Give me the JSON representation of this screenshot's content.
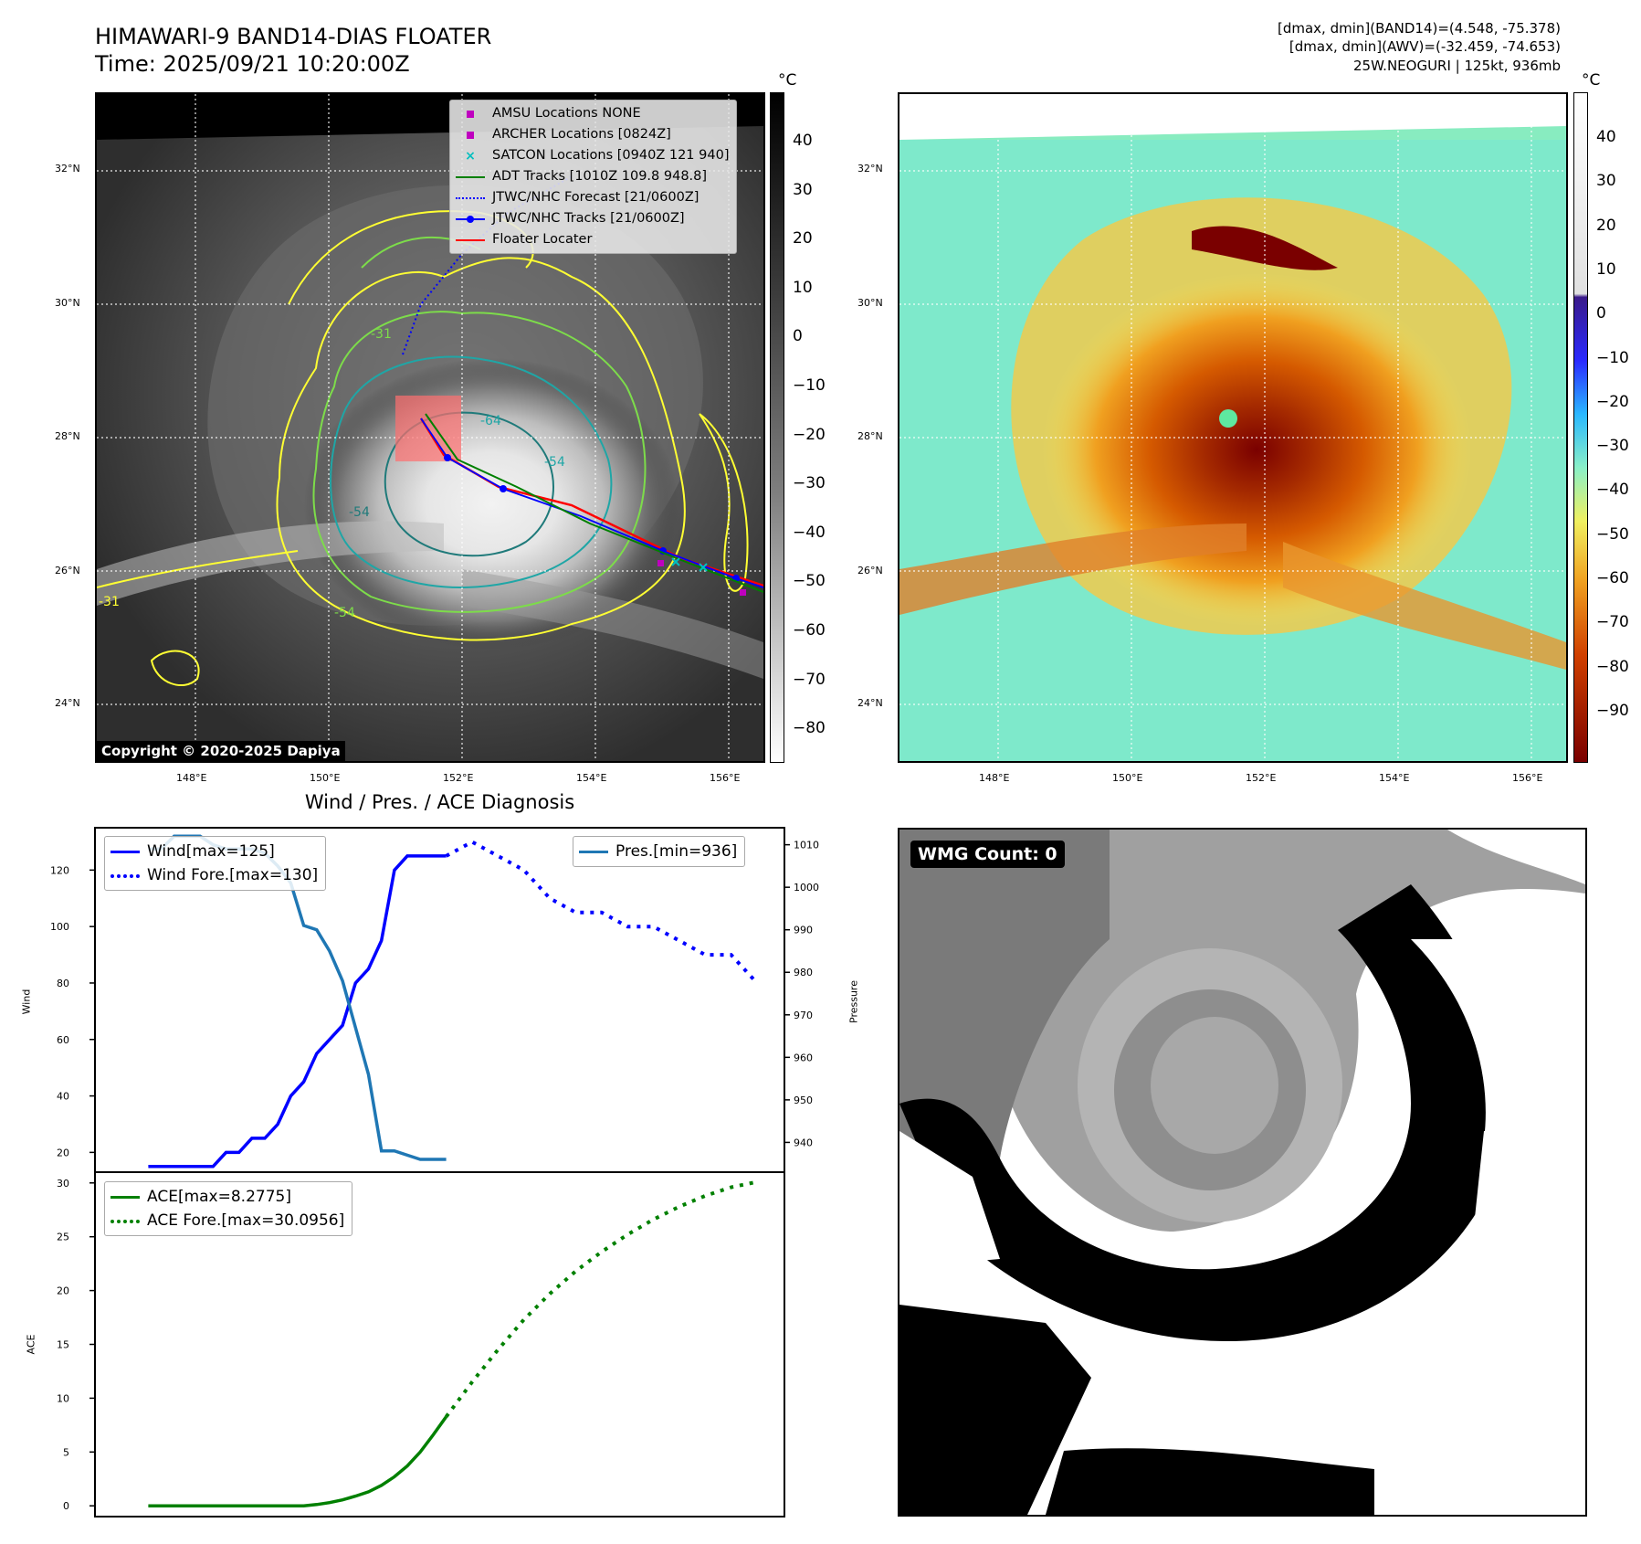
{
  "header": {
    "title_line1": "HIMAWARI-9 BAND14-DIAS FLOATER",
    "title_line2": "Time: 2025/09/21 10:20:00Z",
    "info_line1": "[dmax, dmin](BAND14)=(4.548, -75.378)",
    "info_line2": "[dmax, dmin](AWV)=(-32.459, -74.653)",
    "info_line3": "25W.NEOGURI | 125kt, 936mb"
  },
  "map_ticks": {
    "lat": [
      "32°N",
      "30°N",
      "28°N",
      "26°N",
      "24°N"
    ],
    "lon": [
      "148°E",
      "150°E",
      "152°E",
      "154°E",
      "156°E"
    ]
  },
  "ir_panel": {
    "legend": [
      {
        "label": "AMSU Locations NONE",
        "color": "#bf00bf",
        "symbol": "square"
      },
      {
        "label": "ARCHER Locations [0824Z]",
        "color": "#bf00bf",
        "symbol": "square"
      },
      {
        "label": "SATCON Locations [0940Z 121 940]",
        "color": "#00bfbf",
        "symbol": "x"
      },
      {
        "label": "ADT Tracks [1010Z 109.8 948.8]",
        "color": "#008000",
        "symbol": "line"
      },
      {
        "label": "JTWC/NHC Forecast [21/0600Z]",
        "color": "#0000ff",
        "symbol": "dotted"
      },
      {
        "label": "JTWC/NHC Tracks [21/0600Z]",
        "color": "#0000ff",
        "symbol": "line-dot"
      },
      {
        "label": "Floater Locater",
        "color": "#ff0000",
        "symbol": "line"
      }
    ],
    "copyright": "Copyright © 2020-2025 Dapiya",
    "colorbar_unit": "°C",
    "colorbar_ticks": [
      "40",
      "30",
      "20",
      "10",
      "0",
      "−10",
      "−20",
      "−30",
      "−40",
      "−50",
      "−60",
      "−70",
      "−80"
    ],
    "contour_labels": [
      "-31",
      "-54",
      "-64",
      "-54",
      "-31",
      "-54"
    ]
  },
  "awv_panel": {
    "colorbar_unit": "°C",
    "colorbar_ticks": [
      "40",
      "30",
      "20",
      "10",
      "0",
      "−10",
      "−20",
      "−30",
      "−40",
      "−50",
      "−60",
      "−70",
      "−80",
      "−90"
    ]
  },
  "chart_title": "Wind / Pres. / ACE Diagnosis",
  "chart_data": [
    {
      "type": "line",
      "title": "Wind / Pres. / ACE Diagnosis",
      "ylabel": "Wind",
      "y2label": "Pressure",
      "ylim": [
        13,
        135
      ],
      "y2lim": [
        933,
        1014
      ],
      "x_index_range": [
        0,
        49
      ],
      "y_ticks": [
        "20",
        "40",
        "60",
        "80",
        "100",
        "120"
      ],
      "y2_ticks": [
        "940",
        "950",
        "960",
        "970",
        "980",
        "990",
        "1000",
        "1010"
      ],
      "series": [
        {
          "name": "Wind[max=125]",
          "color": "#0000ff",
          "style": "solid",
          "x": [
            2,
            4,
            6,
            7,
            8,
            9,
            10,
            11,
            12,
            13,
            14,
            15,
            16,
            17,
            18,
            19,
            20,
            21,
            22,
            23,
            24,
            25
          ],
          "values": [
            15,
            15,
            15,
            15,
            20,
            20,
            25,
            25,
            30,
            40,
            45,
            55,
            60,
            65,
            80,
            85,
            95,
            120,
            125,
            125,
            125,
            125
          ]
        },
        {
          "name": "Wind Fore.[max=130]",
          "color": "#0000ff",
          "style": "dotted",
          "x": [
            25,
            27,
            29,
            31,
            33,
            35,
            37,
            39,
            41,
            43,
            45,
            47,
            49
          ],
          "values": [
            125,
            130,
            125,
            120,
            110,
            105,
            105,
            100,
            100,
            95,
            90,
            90,
            80
          ]
        },
        {
          "name": "Pres.[min=936]",
          "color": "#1f77b4",
          "style": "solid",
          "axis": "right",
          "x": [
            2,
            3,
            4,
            5,
            6,
            7,
            8,
            9,
            10,
            11,
            12,
            13,
            14,
            15,
            16,
            17,
            18,
            19,
            20,
            21,
            22,
            23,
            24,
            25
          ],
          "values": [
            1009,
            1009,
            1012,
            1012,
            1012,
            1010,
            1009,
            1009,
            1009,
            1008,
            1005,
            1001,
            991,
            990,
            985,
            978,
            967,
            956,
            938,
            938,
            937,
            936,
            936,
            936
          ]
        }
      ]
    },
    {
      "type": "line",
      "ylabel": "ACE",
      "ylim": [
        -1,
        31
      ],
      "x_index_range": [
        0,
        49
      ],
      "y_ticks": [
        "0",
        "5",
        "10",
        "15",
        "20",
        "25",
        "30"
      ],
      "series": [
        {
          "name": "ACE[max=8.2775]",
          "color": "#008000",
          "style": "solid",
          "x": [
            2,
            4,
            6,
            8,
            10,
            12,
            14,
            15,
            16,
            17,
            18,
            19,
            20,
            21,
            22,
            23,
            24,
            25
          ],
          "values": [
            0,
            0,
            0,
            0,
            0,
            0,
            0,
            0.12,
            0.3,
            0.55,
            0.9,
            1.3,
            1.9,
            2.7,
            3.7,
            5.0,
            6.6,
            8.2775
          ]
        },
        {
          "name": "ACE Fore.[max=30.0956]",
          "color": "#008000",
          "style": "dotted",
          "x": [
            25,
            27,
            29,
            31,
            33,
            35,
            37,
            39,
            41,
            43,
            45,
            47,
            49
          ],
          "values": [
            8.2775,
            11.5,
            14.5,
            17.3,
            19.7,
            21.8,
            23.6,
            25.2,
            26.6,
            27.8,
            28.8,
            29.6,
            30.0956
          ]
        }
      ]
    }
  ],
  "wmg_panel": {
    "label": "WMG Count: 0"
  }
}
